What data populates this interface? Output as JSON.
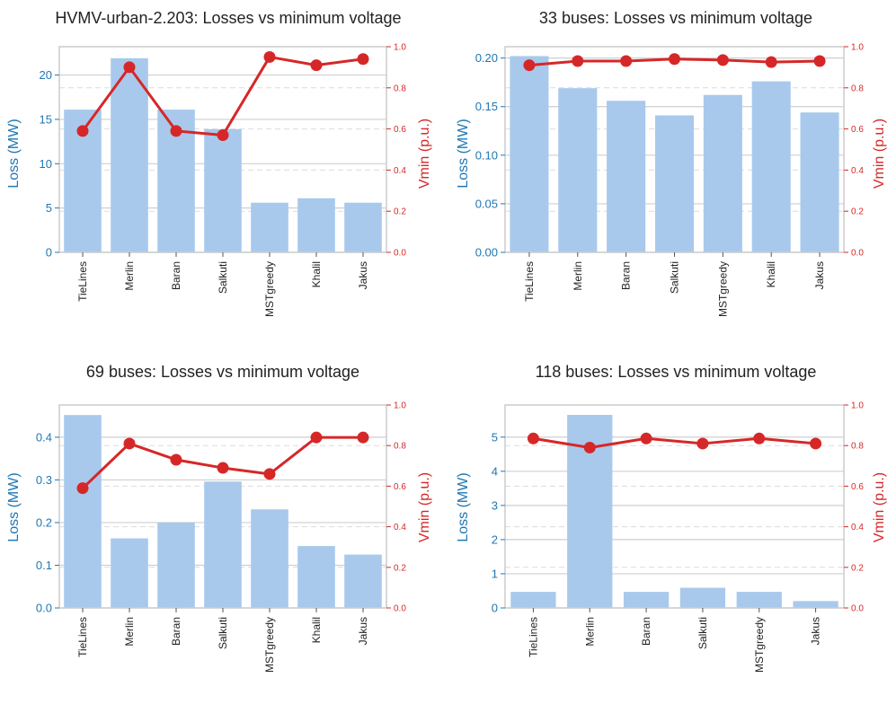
{
  "colors": {
    "bar": "#a8c9ec",
    "loss_axis": "#1f77b4",
    "vmin": "#d62728",
    "grid_solid": "#cfcfcf",
    "grid_dashed": "#dcdcdc",
    "spine": "#cccccc"
  },
  "chart_data": [
    {
      "type": "bar",
      "title": "HVMV-urban-2.203: Losses vs minimum voltage",
      "categories": [
        "TieLines",
        "Merlin",
        "Baran",
        "Salkuti",
        "MSTgreedy",
        "Khalil",
        "Jakus"
      ],
      "series": [
        {
          "name": "Loss (MW)",
          "type": "bar",
          "axis": "left",
          "values": [
            16.1,
            21.9,
            16.1,
            13.9,
            5.6,
            6.1,
            5.6
          ]
        },
        {
          "name": "Vmin (p.u.)",
          "type": "line",
          "axis": "right",
          "values": [
            0.59,
            0.9,
            0.59,
            0.57,
            0.95,
            0.91,
            0.94
          ]
        }
      ],
      "ylabel": "Loss (MW)",
      "y2label": "Vmin (p.u.)",
      "ylim": [
        0,
        23.2
      ],
      "yticks": [
        0,
        5,
        10,
        15,
        20
      ],
      "ytick_labels": [
        "0",
        "5",
        "10",
        "15",
        "20"
      ],
      "y2lim": [
        0,
        1.0
      ],
      "y2ticks": [
        0,
        0.2,
        0.4,
        0.6,
        0.8,
        1.0
      ],
      "y2tick_labels": [
        "0.0",
        "0.2",
        "0.4",
        "0.6",
        "0.8",
        "1.0"
      ]
    },
    {
      "type": "bar",
      "title": "33 buses: Losses vs minimum voltage",
      "categories": [
        "TieLines",
        "Merlin",
        "Baran",
        "Salkuti",
        "MSTgreedy",
        "Khalil",
        "Jakus"
      ],
      "series": [
        {
          "name": "Loss (MW)",
          "type": "bar",
          "axis": "left",
          "values": [
            0.202,
            0.169,
            0.156,
            0.141,
            0.162,
            0.176,
            0.144
          ]
        },
        {
          "name": "Vmin (p.u.)",
          "type": "line",
          "axis": "right",
          "values": [
            0.91,
            0.93,
            0.93,
            0.94,
            0.935,
            0.925,
            0.93
          ]
        }
      ],
      "ylabel": "Loss (MW)",
      "y2label": "Vmin (p.u.)",
      "ylim": [
        0,
        0.2117
      ],
      "yticks": [
        0,
        0.05,
        0.1,
        0.15,
        0.2
      ],
      "ytick_labels": [
        "0.00",
        "0.05",
        "0.10",
        "0.15",
        "0.20"
      ],
      "y2lim": [
        0,
        1.0
      ],
      "y2ticks": [
        0,
        0.2,
        0.4,
        0.6,
        0.8,
        1.0
      ],
      "y2tick_labels": [
        "0.0",
        "0.2",
        "0.4",
        "0.6",
        "0.8",
        "1.0"
      ]
    },
    {
      "type": "bar",
      "title": "69 buses: Losses vs minimum voltage",
      "categories": [
        "TieLines",
        "Merlin",
        "Baran",
        "Salkuti",
        "MSTgreedy",
        "Khalil",
        "Jakus"
      ],
      "series": [
        {
          "name": "Loss (MW)",
          "type": "bar",
          "axis": "left",
          "values": [
            0.452,
            0.163,
            0.2,
            0.296,
            0.231,
            0.145,
            0.125
          ]
        },
        {
          "name": "Vmin (p.u.)",
          "type": "line",
          "axis": "right",
          "values": [
            0.59,
            0.81,
            0.73,
            0.69,
            0.66,
            0.84,
            0.84
          ]
        }
      ],
      "ylabel": "Loss (MW)",
      "y2label": "Vmin (p.u.)",
      "ylim": [
        0,
        0.4755
      ],
      "yticks": [
        0,
        0.1,
        0.2,
        0.3,
        0.4
      ],
      "ytick_labels": [
        "0.0",
        "0.1",
        "0.2",
        "0.3",
        "0.4"
      ],
      "y2lim": [
        0,
        1.0
      ],
      "y2ticks": [
        0,
        0.2,
        0.4,
        0.6,
        0.8,
        1.0
      ],
      "y2tick_labels": [
        "0.0",
        "0.2",
        "0.4",
        "0.6",
        "0.8",
        "1.0"
      ]
    },
    {
      "type": "bar",
      "title": "118 buses: Losses vs minimum voltage",
      "categories": [
        "TieLines",
        "Merlin",
        "Baran",
        "Salkuti",
        "MSTgreedy",
        "Jakus"
      ],
      "series": [
        {
          "name": "Loss (MW)",
          "type": "bar",
          "axis": "left",
          "values": [
            0.47,
            5.65,
            0.47,
            0.59,
            0.47,
            0.2
          ]
        },
        {
          "name": "Vmin (p.u.)",
          "type": "line",
          "axis": "right",
          "values": [
            0.835,
            0.79,
            0.835,
            0.81,
            0.835,
            0.81
          ]
        }
      ],
      "ylabel": "Loss (MW)",
      "y2label": "Vmin (p.u.)",
      "ylim": [
        0,
        5.94
      ],
      "yticks": [
        0,
        1,
        2,
        3,
        4,
        5
      ],
      "ytick_labels": [
        "0",
        "1",
        "2",
        "3",
        "4",
        "5"
      ],
      "y2lim": [
        0,
        1.0
      ],
      "y2ticks": [
        0,
        0.2,
        0.4,
        0.6,
        0.8,
        1.0
      ],
      "y2tick_labels": [
        "0.0",
        "0.2",
        "0.4",
        "0.6",
        "0.8",
        "1.0"
      ]
    }
  ]
}
